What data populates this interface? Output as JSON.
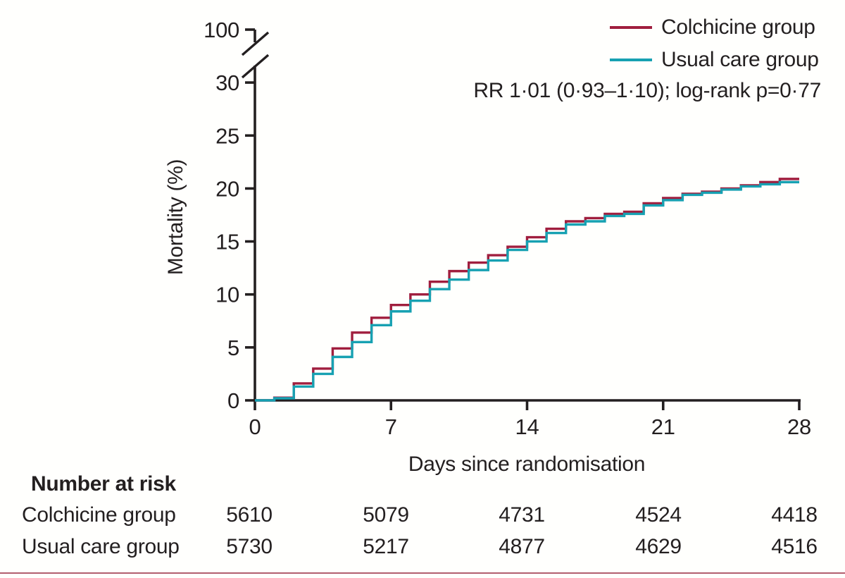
{
  "chart_data": {
    "type": "line",
    "subtype": "kaplan-meier-step",
    "title": "",
    "xlabel": "Days since randomisation",
    "ylabel": "Mortality (%)",
    "annotation": "RR 1·01 (0·93–1·10); log-rank p=0·77",
    "xlim": [
      0,
      28
    ],
    "ylim": [
      0,
      30
    ],
    "axis_break": {
      "present": true,
      "between": [
        30,
        100
      ]
    },
    "x_ticks": [
      0,
      7,
      14,
      21,
      28
    ],
    "y_ticks": [
      0,
      5,
      10,
      15,
      20,
      25,
      30,
      100
    ],
    "legend_position": "top-right",
    "grid": false,
    "x": [
      0,
      1,
      2,
      3,
      4,
      5,
      6,
      7,
      8,
      9,
      10,
      11,
      12,
      13,
      14,
      15,
      16,
      17,
      18,
      19,
      20,
      21,
      22,
      23,
      24,
      25,
      26,
      27,
      28
    ],
    "series": [
      {
        "name": "Colchicine group",
        "color": "#A01E3E",
        "values": [
          0,
          0.25,
          1.6,
          3.0,
          4.9,
          6.4,
          7.8,
          9.0,
          10.0,
          11.2,
          12.2,
          13.0,
          13.7,
          14.5,
          15.4,
          16.2,
          16.9,
          17.2,
          17.6,
          17.8,
          18.6,
          19.1,
          19.5,
          19.7,
          20.0,
          20.3,
          20.6,
          20.9,
          20.9
        ]
      },
      {
        "name": "Usual care group",
        "color": "#17A1B2",
        "values": [
          0,
          0.2,
          1.3,
          2.5,
          4.1,
          5.5,
          7.1,
          8.4,
          9.4,
          10.5,
          11.4,
          12.3,
          13.2,
          14.2,
          15.0,
          15.8,
          16.6,
          16.9,
          17.4,
          17.6,
          18.4,
          18.9,
          19.4,
          19.6,
          19.9,
          20.2,
          20.4,
          20.6,
          20.6
        ]
      }
    ]
  },
  "risk_table": {
    "title": "Number at risk",
    "days": [
      0,
      7,
      14,
      21,
      28
    ],
    "rows": [
      {
        "label": "Colchicine group",
        "counts": [
          "5610",
          "5079",
          "4731",
          "4524",
          "4418"
        ]
      },
      {
        "label": "Usual care group",
        "counts": [
          "5730",
          "5217",
          "4877",
          "4629",
          "4516"
        ]
      }
    ]
  },
  "colors": {
    "axis": "#231F20",
    "text": "#231F20",
    "colchicine": "#A01E3E",
    "usual_care": "#17A1B2",
    "bottom_rule": "#B25E6E",
    "background": "#FFFFFD"
  }
}
